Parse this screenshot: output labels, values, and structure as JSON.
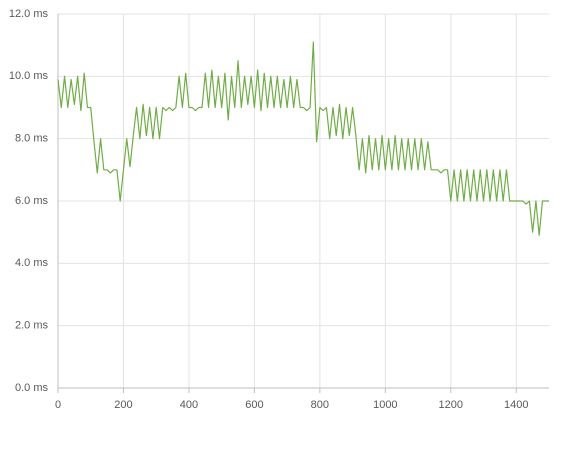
{
  "chart_data": {
    "type": "line",
    "color": "#70ad47",
    "grid": true,
    "x": [
      0,
      10,
      20,
      30,
      40,
      50,
      60,
      70,
      80,
      90,
      100,
      110,
      120,
      130,
      140,
      150,
      160,
      170,
      180,
      190,
      200,
      210,
      220,
      230,
      240,
      250,
      260,
      270,
      280,
      290,
      300,
      310,
      320,
      330,
      340,
      350,
      360,
      370,
      380,
      390,
      400,
      410,
      420,
      430,
      440,
      450,
      460,
      470,
      480,
      490,
      500,
      510,
      520,
      530,
      540,
      550,
      560,
      570,
      580,
      590,
      600,
      610,
      620,
      630,
      640,
      650,
      660,
      670,
      680,
      690,
      700,
      710,
      720,
      730,
      740,
      750,
      760,
      770,
      780,
      790,
      800,
      810,
      820,
      830,
      840,
      850,
      860,
      870,
      880,
      890,
      900,
      910,
      920,
      930,
      940,
      950,
      960,
      970,
      980,
      990,
      1000,
      1010,
      1020,
      1030,
      1040,
      1050,
      1060,
      1070,
      1080,
      1090,
      1100,
      1110,
      1120,
      1130,
      1140,
      1150,
      1160,
      1170,
      1180,
      1190,
      1200,
      1210,
      1220,
      1230,
      1240,
      1250,
      1260,
      1270,
      1280,
      1290,
      1300,
      1310,
      1320,
      1330,
      1340,
      1350,
      1360,
      1370,
      1380,
      1390,
      1400,
      1410,
      1420,
      1430,
      1440,
      1450,
      1460,
      1470,
      1480,
      1490,
      1500
    ],
    "values": [
      9.9,
      9.0,
      10.0,
      9.0,
      9.9,
      9.1,
      10.0,
      8.9,
      10.1,
      9.0,
      9.0,
      7.9,
      6.9,
      8.0,
      7.0,
      7.0,
      6.9,
      7.0,
      7.0,
      6.0,
      7.0,
      8.0,
      7.1,
      8.1,
      9.0,
      8.0,
      9.1,
      8.1,
      9.0,
      8.0,
      9.0,
      8.0,
      9.0,
      8.9,
      9.0,
      8.9,
      9.0,
      10.0,
      9.0,
      10.1,
      9.0,
      9.0,
      8.9,
      9.0,
      9.0,
      10.1,
      9.0,
      10.2,
      9.0,
      10.0,
      9.0,
      10.1,
      8.6,
      10.0,
      9.0,
      10.5,
      9.0,
      10.0,
      9.1,
      10.0,
      9.0,
      10.2,
      8.9,
      10.1,
      9.0,
      10.0,
      9.0,
      10.0,
      9.0,
      9.9,
      9.0,
      10.0,
      9.0,
      9.9,
      9.0,
      9.0,
      8.9,
      9.0,
      11.1,
      7.9,
      9.0,
      8.9,
      9.0,
      8.0,
      9.0,
      8.1,
      9.1,
      8.0,
      9.0,
      8.1,
      9.0,
      8.1,
      7.0,
      8.0,
      6.9,
      8.1,
      7.0,
      8.0,
      7.0,
      8.1,
      7.0,
      8.0,
      7.0,
      8.1,
      7.0,
      8.0,
      7.0,
      8.0,
      7.0,
      8.0,
      7.0,
      8.0,
      7.0,
      7.9,
      7.0,
      7.0,
      7.0,
      6.9,
      7.0,
      7.0,
      6.0,
      7.0,
      6.0,
      7.0,
      6.0,
      7.0,
      6.0,
      7.0,
      6.0,
      7.0,
      6.0,
      7.0,
      6.0,
      7.0,
      6.0,
      7.0,
      6.0,
      7.0,
      6.0,
      6.0,
      6.0,
      6.0,
      6.0,
      5.9,
      6.0,
      5.0,
      6.0,
      4.9,
      6.0,
      6.0,
      6.0
    ],
    "xlim": [
      0,
      1500
    ],
    "xticks": [
      0,
      200,
      400,
      600,
      800,
      1000,
      1200,
      1400
    ],
    "ylim": [
      0,
      12
    ],
    "yticks": [
      {
        "value": 0,
        "label": "0.0 ms"
      },
      {
        "value": 2,
        "label": "2.0 ms"
      },
      {
        "value": 4,
        "label": "4.0 ms"
      },
      {
        "value": 6,
        "label": "6.0 ms"
      },
      {
        "value": 8,
        "label": "8.0 ms"
      },
      {
        "value": 10,
        "label": "10.0 ms"
      },
      {
        "value": 12,
        "label": "12.0 ms"
      }
    ]
  }
}
